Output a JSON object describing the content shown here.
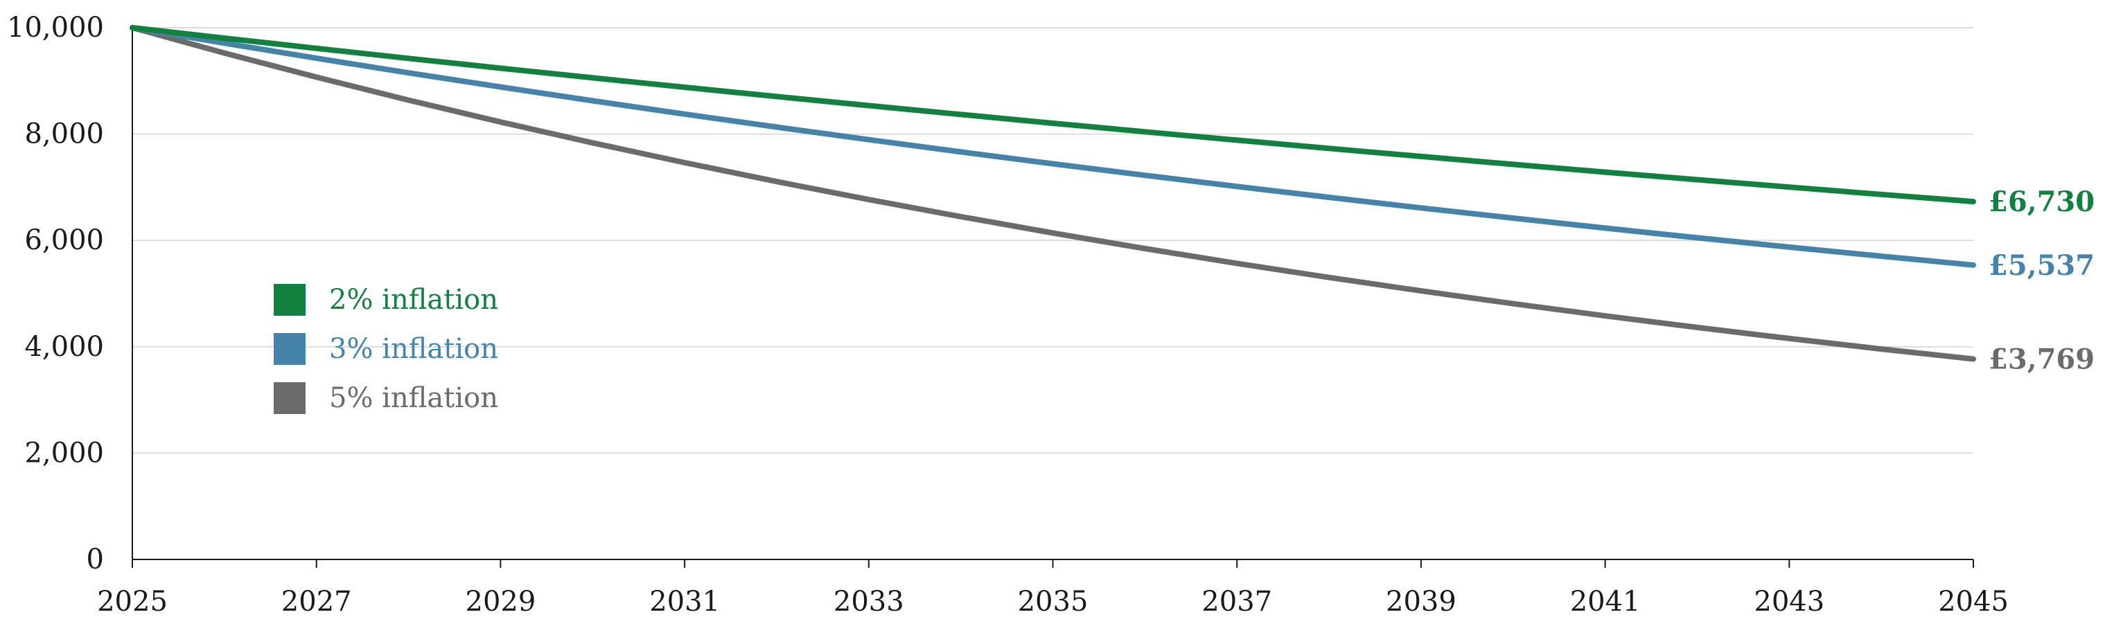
{
  "chart_data": {
    "type": "line",
    "title": "",
    "xlabel": "",
    "ylabel": "",
    "xlim": [
      2025,
      2045
    ],
    "ylim": [
      0,
      10000
    ],
    "x_ticks": [
      2025,
      2027,
      2029,
      2031,
      2033,
      2035,
      2037,
      2039,
      2041,
      2043,
      2045
    ],
    "x_tick_labels": [
      "2025",
      "2027",
      "2029",
      "2031",
      "2033",
      "2035",
      "2037",
      "2039",
      "2041",
      "2043",
      "2045"
    ],
    "y_ticks": [
      0,
      2000,
      4000,
      6000,
      8000,
      10000
    ],
    "y_tick_labels": [
      "0",
      "2,000",
      "4,000",
      "6,000",
      "8,000",
      "10,000"
    ],
    "grid": "horizontal",
    "legend_position": "middle-left",
    "x": [
      2025,
      2026,
      2027,
      2028,
      2029,
      2030,
      2031,
      2032,
      2033,
      2034,
      2035,
      2036,
      2037,
      2038,
      2039,
      2040,
      2041,
      2042,
      2043,
      2044,
      2045
    ],
    "series": [
      {
        "name": "2% inflation",
        "color": "#12803f",
        "end_label": "£6,730",
        "values": [
          10000,
          9804,
          9612,
          9423,
          9238,
          9057,
          8880,
          8706,
          8535,
          8368,
          8203,
          8043,
          7885,
          7730,
          7579,
          7430,
          7284,
          7142,
          7002,
          6864,
          6730
        ]
      },
      {
        "name": "3% inflation",
        "color": "#4583ab",
        "end_label": "£5,537",
        "values": [
          10000,
          9709,
          9426,
          9151,
          8885,
          8626,
          8375,
          8131,
          7894,
          7664,
          7441,
          7224,
          7014,
          6810,
          6611,
          6419,
          6232,
          6050,
          5874,
          5703,
          5537
        ]
      },
      {
        "name": "5% inflation",
        "color": "#6b6b6b",
        "end_label": "£3,769",
        "values": [
          10000,
          9524,
          9070,
          8638,
          8227,
          7835,
          7462,
          7107,
          6768,
          6446,
          6139,
          5847,
          5568,
          5303,
          5051,
          4810,
          4581,
          4363,
          4155,
          3957,
          3769
        ]
      }
    ]
  }
}
